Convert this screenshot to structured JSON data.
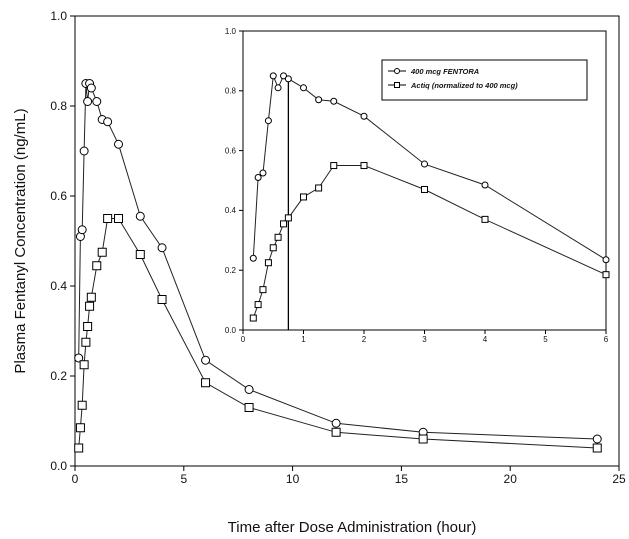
{
  "chart_data": [
    {
      "type": "line",
      "xlabel": "Time after Dose Administration (hour)",
      "ylabel": "Plasma Fentanyl Concentration (ng/mL)",
      "xlim": [
        0,
        25
      ],
      "ylim": [
        0,
        1.0
      ],
      "x_ticks": [
        "0",
        "5",
        "10",
        "15",
        "20",
        "25"
      ],
      "y_ticks": [
        "0.0",
        "0.2",
        "0.4",
        "0.6",
        "0.8",
        "1.0"
      ],
      "grid": false,
      "series": [
        {
          "marker": "circle",
          "x": [
            0.17,
            0.25,
            0.33,
            0.42,
            0.5,
            0.58,
            0.67,
            0.75,
            1.0,
            1.25,
            1.5,
            2,
            3,
            4,
            6,
            8,
            12,
            16,
            24
          ],
          "y": [
            0.24,
            0.51,
            0.525,
            0.7,
            0.85,
            0.81,
            0.85,
            0.84,
            0.81,
            0.77,
            0.765,
            0.715,
            0.555,
            0.485,
            0.235,
            0.17,
            0.095,
            0.075,
            0.06
          ]
        },
        {
          "marker": "square",
          "x": [
            0.17,
            0.25,
            0.33,
            0.42,
            0.5,
            0.58,
            0.67,
            0.75,
            1.0,
            1.25,
            1.5,
            2,
            3,
            4,
            6,
            8,
            12,
            16,
            24
          ],
          "y": [
            0.04,
            0.085,
            0.135,
            0.225,
            0.275,
            0.31,
            0.355,
            0.375,
            0.445,
            0.475,
            0.55,
            0.55,
            0.47,
            0.37,
            0.185,
            0.13,
            0.075,
            0.06,
            0.04
          ]
        }
      ]
    },
    {
      "type": "line",
      "inset": true,
      "xlim": [
        0,
        6
      ],
      "ylim": [
        0,
        1.0
      ],
      "x_ticks": [
        "0",
        "1",
        "2",
        "3",
        "4",
        "5",
        "6"
      ],
      "y_ticks": [
        "0.0",
        "0.2",
        "0.4",
        "0.6",
        "0.8",
        "1.0"
      ],
      "vertical_line_x": 0.75,
      "legend": "top-right",
      "series": [
        {
          "name": "400 mcg FENTORA",
          "marker": "circle",
          "x": [
            0.17,
            0.25,
            0.33,
            0.42,
            0.5,
            0.58,
            0.67,
            0.75,
            1.0,
            1.25,
            1.5,
            2,
            3,
            4,
            6
          ],
          "y": [
            0.24,
            0.51,
            0.525,
            0.7,
            0.85,
            0.81,
            0.85,
            0.84,
            0.81,
            0.77,
            0.765,
            0.715,
            0.555,
            0.485,
            0.235
          ]
        },
        {
          "name": "Actiq (normalized to 400 mcg)",
          "marker": "square",
          "x": [
            0.17,
            0.25,
            0.33,
            0.42,
            0.5,
            0.58,
            0.67,
            0.75,
            1.0,
            1.25,
            1.5,
            2,
            3,
            4,
            6
          ],
          "y": [
            0.04,
            0.085,
            0.135,
            0.225,
            0.275,
            0.31,
            0.355,
            0.375,
            0.445,
            0.475,
            0.55,
            0.55,
            0.47,
            0.37,
            0.185
          ]
        }
      ]
    }
  ]
}
